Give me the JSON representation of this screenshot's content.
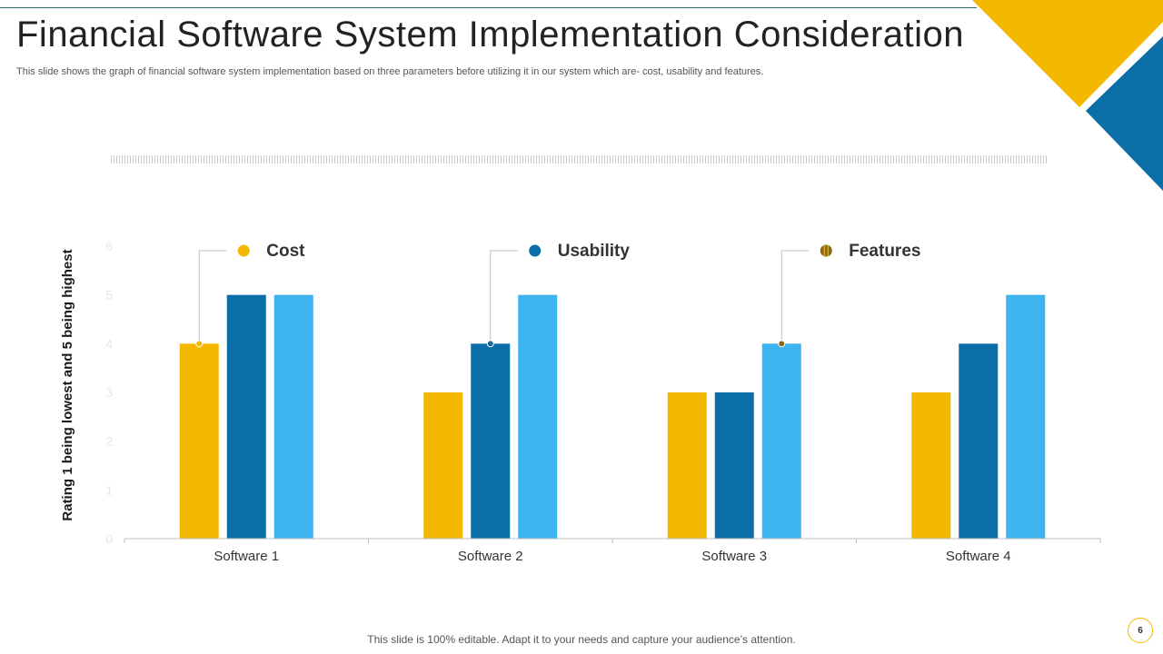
{
  "slide": {
    "title": "Financial Software System Implementation Consideration",
    "subtitle": "This slide shows the graph of  financial software system implementation based on three parameters before utilizing it in our system which are- cost, usability and features.",
    "footer": "This slide is 100% editable. Adapt it to your needs and capture your audience’s attention.",
    "page_number": "6"
  },
  "colors": {
    "accent_yellow": "#F5B800",
    "accent_dark_blue": "#0B6EA6",
    "accent_light_blue": "#3DB3F0",
    "features_marker": "#8B6914"
  },
  "chart_data": {
    "type": "bar",
    "title": "",
    "xlabel": "",
    "ylabel": "Rating 1 being lowest and 5 being highest",
    "ylim": [
      0,
      6
    ],
    "yticks": [
      "0",
      "1",
      "2",
      "3",
      "4",
      "5",
      "6"
    ],
    "categories": [
      "Software 1",
      "Software 2",
      "Software 3",
      "Software 4"
    ],
    "series": [
      {
        "name": "Cost",
        "values": [
          4,
          3,
          3,
          3
        ],
        "color": "#F5B800"
      },
      {
        "name": "Usability",
        "values": [
          5,
          4,
          3,
          4
        ],
        "color": "#0B6EA6"
      },
      {
        "name": "Features",
        "values": [
          5,
          5,
          4,
          5
        ],
        "color": "#3DB3F0"
      }
    ],
    "callouts": [
      {
        "series": "Cost",
        "category": "Software 1",
        "value": 4
      },
      {
        "series": "Usability",
        "category": "Software 2",
        "value": 4
      },
      {
        "series": "Features",
        "category": "Software 3",
        "value": 4
      }
    ]
  }
}
